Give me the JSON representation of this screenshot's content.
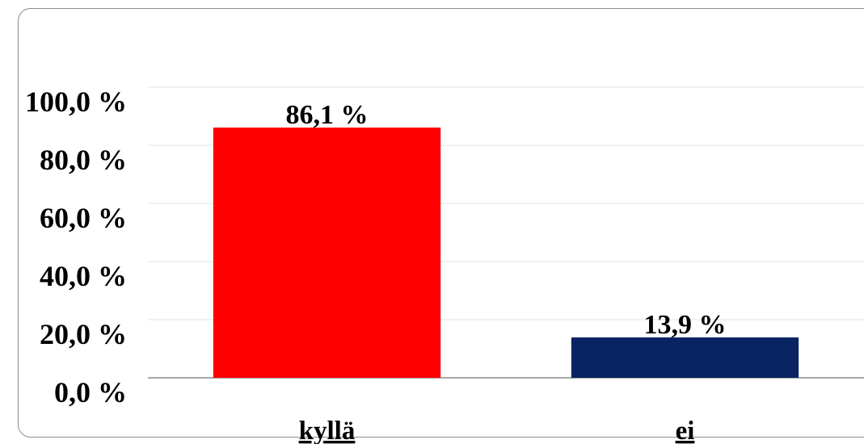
{
  "chart_data": {
    "type": "bar",
    "categories": [
      "kyllä",
      "ei"
    ],
    "values": [
      86.1,
      13.9
    ],
    "value_labels": [
      "86,1 %",
      "13,9 %"
    ],
    "colors": [
      "#ff0000",
      "#0a2463"
    ],
    "ylim": [
      0,
      100
    ],
    "ytick_values": [
      0,
      20,
      40,
      60,
      80,
      100
    ],
    "ytick_labels": [
      "0,0 %",
      "20,0 %",
      "40,0 %",
      "60,0 %",
      "80,0 %",
      "100,0 %"
    ],
    "grid": true,
    "title": "",
    "xlabel": "",
    "ylabel": ""
  }
}
